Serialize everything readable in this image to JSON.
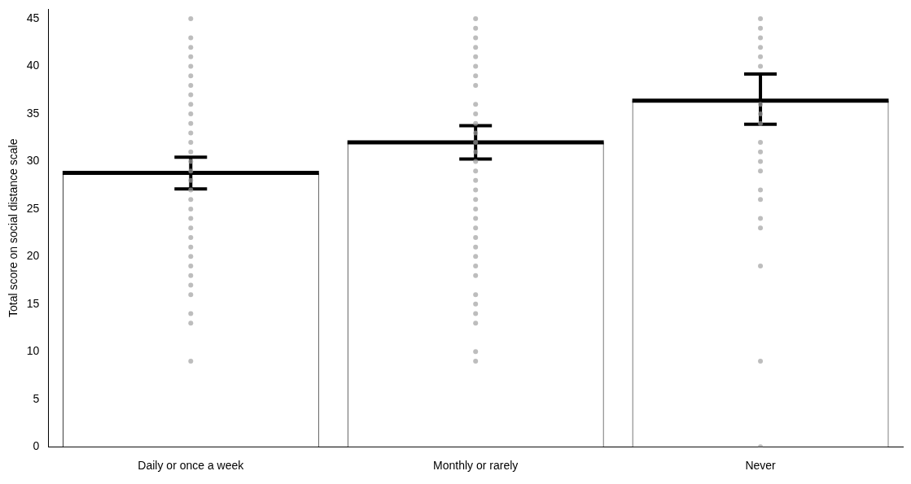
{
  "chart_data": {
    "type": "bar",
    "ylabel": "Total score on social distance scale",
    "categories": [
      "Daily or once a week",
      "Monthly or rarely",
      "Never"
    ],
    "ylim": [
      0,
      46
    ],
    "yticks": [
      0,
      5,
      10,
      15,
      20,
      25,
      30,
      35,
      40,
      45
    ],
    "grid": false,
    "legend": false,
    "series": [
      {
        "color": "#ffffff",
        "values": [
          28.8,
          32.0,
          36.4
        ],
        "errors": [
          [
            27.1,
            30.45
          ],
          [
            30.25,
            33.75
          ],
          [
            33.9,
            39.2
          ]
        ]
      },
      {
        "type": "scatter",
        "color": "#a0a0a0",
        "marker": "circle",
        "x": [
          "Daily or once a week",
          "Daily or once a week",
          "Daily or once a week",
          "Daily or once a week",
          "Daily or once a week",
          "Daily or once a week",
          "Daily or once a week",
          "Daily or once a week",
          "Daily or once a week",
          "Daily or once a week",
          "Daily or once a week",
          "Daily or once a week",
          "Daily or once a week",
          "Daily or once a week",
          "Daily or once a week",
          "Daily or once a week",
          "Daily or once a week",
          "Daily or once a week",
          "Daily or once a week",
          "Daily or once a week",
          "Daily or once a week",
          "Daily or once a week",
          "Daily or once a week",
          "Daily or once a week",
          "Daily or once a week",
          "Daily or once a week",
          "Daily or once a week",
          "Daily or once a week",
          "Daily or once a week",
          "Daily or once a week",
          "Daily or once a week",
          "Daily or once a week",
          "Monthly or rarely",
          "Monthly or rarely",
          "Monthly or rarely",
          "Monthly or rarely",
          "Monthly or rarely",
          "Monthly or rarely",
          "Monthly or rarely",
          "Monthly or rarely",
          "Monthly or rarely",
          "Monthly or rarely",
          "Monthly or rarely",
          "Monthly or rarely",
          "Monthly or rarely",
          "Monthly or rarely",
          "Monthly or rarely",
          "Monthly or rarely",
          "Monthly or rarely",
          "Monthly or rarely",
          "Monthly or rarely",
          "Monthly or rarely",
          "Monthly or rarely",
          "Monthly or rarely",
          "Monthly or rarely",
          "Monthly or rarely",
          "Monthly or rarely",
          "Monthly or rarely",
          "Monthly or rarely",
          "Monthly or rarely",
          "Monthly or rarely",
          "Monthly or rarely",
          "Monthly or rarely",
          "Monthly or rarely",
          "Monthly or rarely",
          "Never",
          "Never",
          "Never",
          "Never",
          "Never",
          "Never",
          "Never",
          "Never",
          "Never",
          "Never",
          "Never",
          "Never",
          "Never",
          "Never",
          "Never",
          "Never",
          "Never",
          "Never",
          "Never",
          "Never"
        ],
        "values": [
          45,
          43,
          42,
          41,
          40,
          39,
          38,
          37,
          36,
          35,
          34,
          33,
          32,
          31,
          30,
          29,
          28,
          27,
          26,
          25,
          24,
          23,
          22,
          21,
          20,
          19,
          18,
          17,
          16,
          14,
          13,
          9,
          45,
          44,
          43,
          42,
          41,
          40,
          39,
          38,
          36,
          35,
          34,
          33,
          32,
          31,
          30,
          29,
          28,
          27,
          26,
          25,
          24,
          23,
          22,
          21,
          20,
          19,
          18,
          16,
          15,
          14,
          13,
          10,
          9,
          45,
          44,
          43,
          42,
          41,
          40,
          36,
          35,
          34,
          32,
          31,
          30,
          29,
          27,
          26,
          24,
          23,
          19,
          9,
          0
        ]
      }
    ]
  }
}
